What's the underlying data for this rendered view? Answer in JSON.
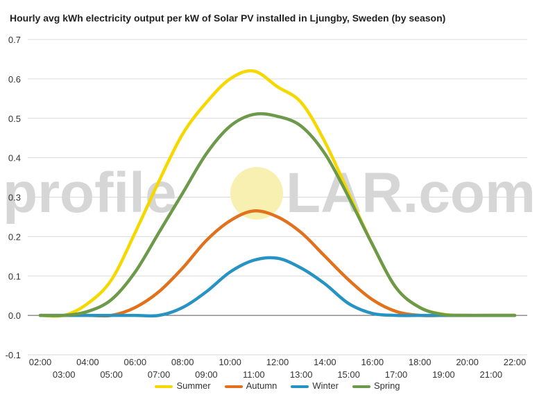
{
  "title": "Hourly avg kWh electricity output per kW of Solar PV installed in Ljungby, Sweden (by season)",
  "watermark": {
    "left": "profile",
    "right": "LAR.com",
    "circle_color": "#f7f0b0",
    "text_color": "#d6d6d6"
  },
  "chart_data": {
    "type": "line",
    "title": "Hourly avg kWh electricity output per kW of Solar PV installed in Ljungby, Sweden (by season)",
    "xlabel": "",
    "ylabel": "",
    "x": [
      "02:00",
      "03:00",
      "04:00",
      "05:00",
      "06:00",
      "07:00",
      "08:00",
      "09:00",
      "10:00",
      "11:00",
      "12:00",
      "13:00",
      "14:00",
      "15:00",
      "16:00",
      "17:00",
      "18:00",
      "19:00",
      "20:00",
      "21:00",
      "22:00"
    ],
    "x_tick_labels_row1": [
      "02:00",
      "04:00",
      "06:00",
      "08:00",
      "10:00",
      "12:00",
      "14:00",
      "16:00",
      "18:00",
      "20:00",
      "22:00"
    ],
    "x_tick_labels_row2": [
      "03:00",
      "05:00",
      "07:00",
      "09:00",
      "11:00",
      "13:00",
      "15:00",
      "17:00",
      "19:00",
      "21:00"
    ],
    "ylim": [
      -0.1,
      0.7
    ],
    "yticks": [
      "0.7",
      "0.6",
      "0.5",
      "0.4",
      "0.3",
      "0.2",
      "0.1",
      "0.0",
      "-0.1"
    ],
    "ytick_values": [
      0.7,
      0.6,
      0.5,
      0.4,
      0.3,
      0.2,
      0.1,
      0.0,
      -0.1
    ],
    "grid": true,
    "legend_position": "bottom",
    "series": [
      {
        "name": "Summer",
        "color": "#f5d800",
        "values": [
          0.0,
          0.0,
          0.03,
          0.09,
          0.21,
          0.34,
          0.46,
          0.54,
          0.6,
          0.62,
          0.58,
          0.54,
          0.44,
          0.31,
          0.18,
          0.07,
          0.02,
          0.003,
          0.0,
          0.0,
          0.0
        ]
      },
      {
        "name": "Autumn",
        "color": "#e2711d",
        "values": [
          0.0,
          0.0,
          0.0,
          0.0,
          0.02,
          0.06,
          0.12,
          0.19,
          0.24,
          0.265,
          0.25,
          0.21,
          0.15,
          0.09,
          0.04,
          0.01,
          0.0,
          0.0,
          0.0,
          0.0,
          0.0
        ]
      },
      {
        "name": "Winter",
        "color": "#2693c2",
        "values": [
          0.0,
          0.0,
          0.0,
          0.0,
          0.0,
          0.0,
          0.02,
          0.06,
          0.11,
          0.14,
          0.145,
          0.12,
          0.08,
          0.03,
          0.005,
          0.0,
          0.0,
          0.0,
          0.0,
          0.0,
          0.0
        ]
      },
      {
        "name": "Spring",
        "color": "#6d9a4a",
        "values": [
          0.0,
          0.0,
          0.01,
          0.04,
          0.11,
          0.21,
          0.31,
          0.41,
          0.48,
          0.51,
          0.505,
          0.48,
          0.41,
          0.3,
          0.18,
          0.07,
          0.02,
          0.002,
          0.0,
          0.0,
          0.0
        ]
      }
    ]
  }
}
